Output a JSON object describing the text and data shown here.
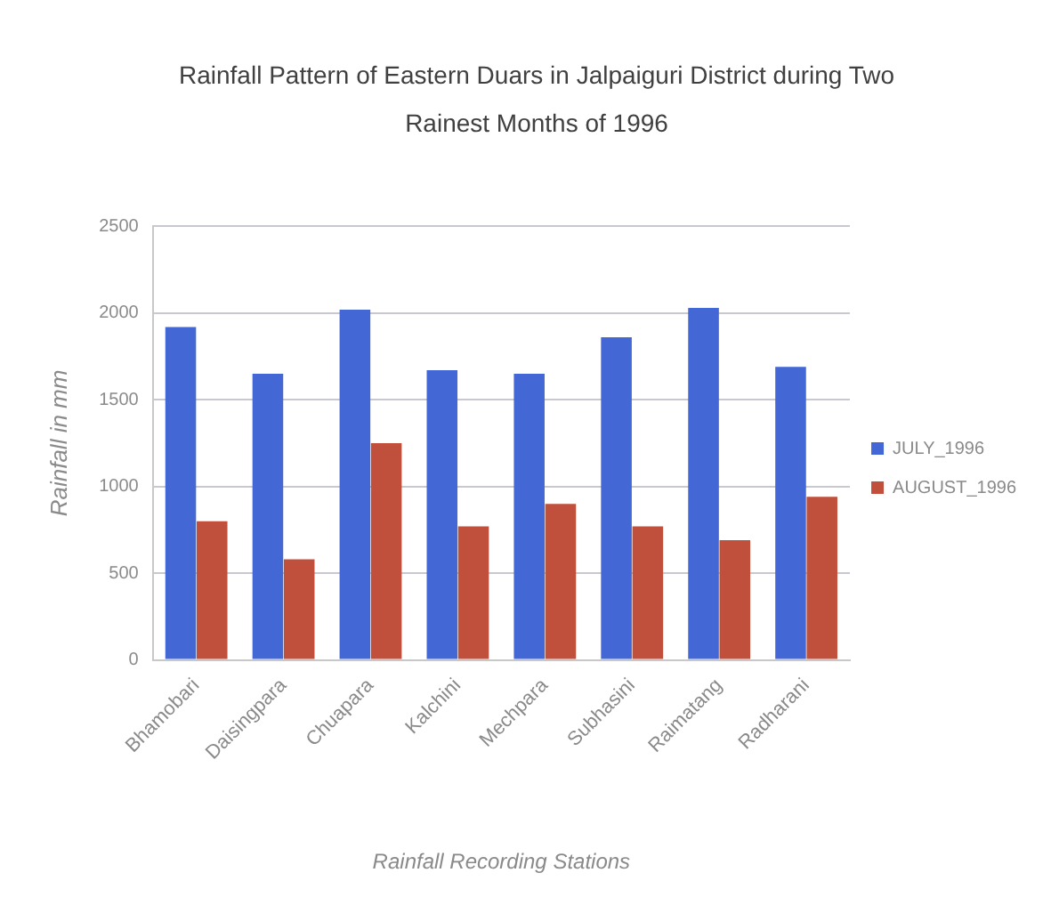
{
  "chart_data": {
    "type": "bar",
    "title": "Rainfall Pattern of Eastern Duars in Jalpaiguri District during Two Rainest Months of 1996",
    "xlabel": "Rainfall Recording Stations",
    "ylabel": "Rainfall in mm",
    "categories": [
      "Bhamobari",
      "Daisingpara",
      "Chuapara",
      "Kalchini",
      "Mechpara",
      "Subhasini",
      "Raimatang",
      "Radharani"
    ],
    "series": [
      {
        "name": "JULY_1996",
        "color": "#4368d6",
        "values": [
          1920,
          1650,
          2020,
          1670,
          1650,
          1860,
          2030,
          1690
        ]
      },
      {
        "name": "AUGUST_1996",
        "color": "#c0503c",
        "values": [
          800,
          580,
          1250,
          770,
          900,
          770,
          690,
          940
        ]
      }
    ],
    "ylim": [
      0,
      2500
    ],
    "yticks": [
      0,
      500,
      1000,
      1500,
      2000,
      2500
    ],
    "grid": "y",
    "legend": "right"
  }
}
